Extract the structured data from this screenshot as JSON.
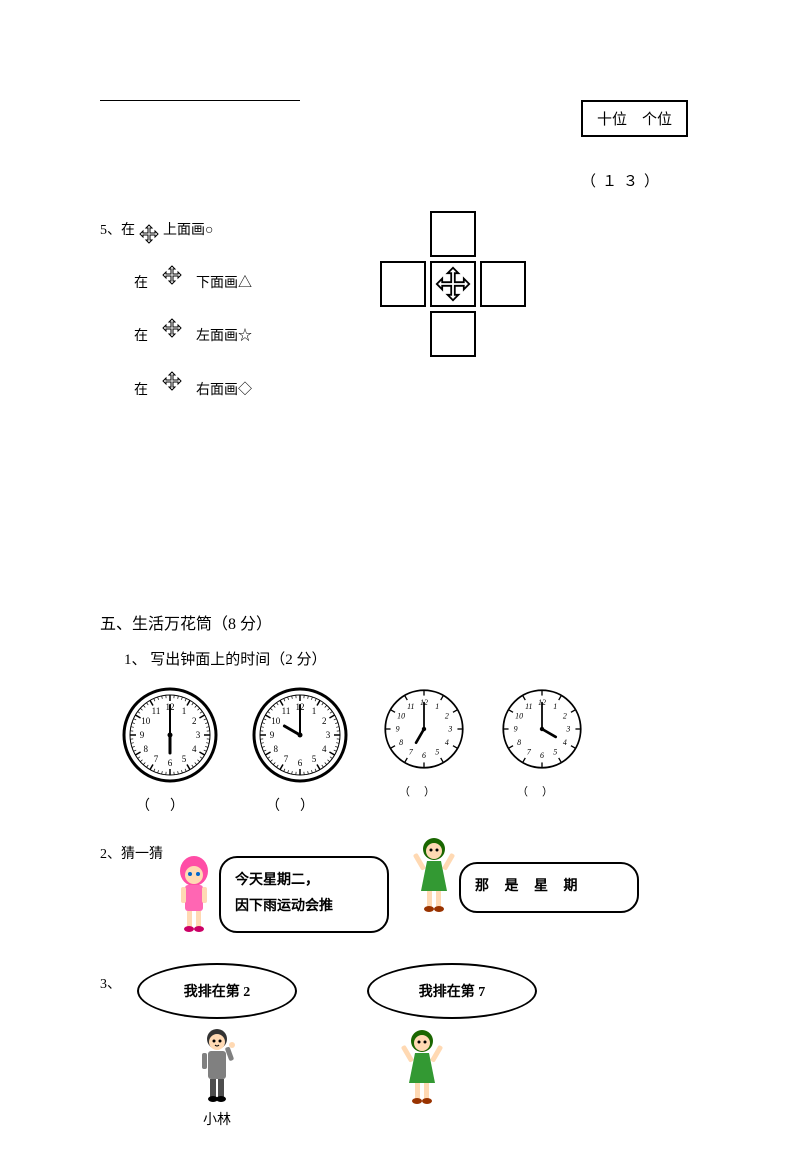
{
  "topbox": {
    "tens": "十位",
    "ones": "个位",
    "number": "（１３）"
  },
  "q5": {
    "prefix": "5、在",
    "l1_suffix": "上面画○",
    "l2_prefix": "在",
    "l2_suffix": "下面画△",
    "l3_prefix": "在",
    "l3_suffix": "左面画☆",
    "l4_prefix": "在",
    "l4_suffix": "右面画◇"
  },
  "section5": {
    "title": "五、生活万花筒（8 分）",
    "sub1": "1、 写出钟面上的时间（2 分）",
    "paren_big": "（）",
    "paren_small": "（）",
    "q2_label": "2、猜一猜",
    "bubble1_l1": "今天星期二，",
    "bubble1_l2": "因下雨运动会推",
    "bubble2": "那 是 星 期",
    "q3_label": "3、",
    "oval1": "我排在第 2",
    "oval2": "我排在第 7",
    "name1": "小林"
  },
  "clocks": [
    {
      "hour": 6,
      "minute": 0,
      "style": "detailed"
    },
    {
      "hour": 10,
      "minute": 0,
      "style": "detailed"
    },
    {
      "hour": 7,
      "minute": 0,
      "style": "simple"
    },
    {
      "hour": 4,
      "minute": 0,
      "style": "simple"
    }
  ],
  "colors": {
    "text": "#000000",
    "bg": "#ffffff",
    "pink_hair": "#ff4da6",
    "pink_dress": "#ff66b3",
    "skin": "#ffd9b3",
    "green_dress": "#339933",
    "green_hair": "#1a6600",
    "gray_suit": "#808080",
    "boy_hair": "#333333"
  }
}
